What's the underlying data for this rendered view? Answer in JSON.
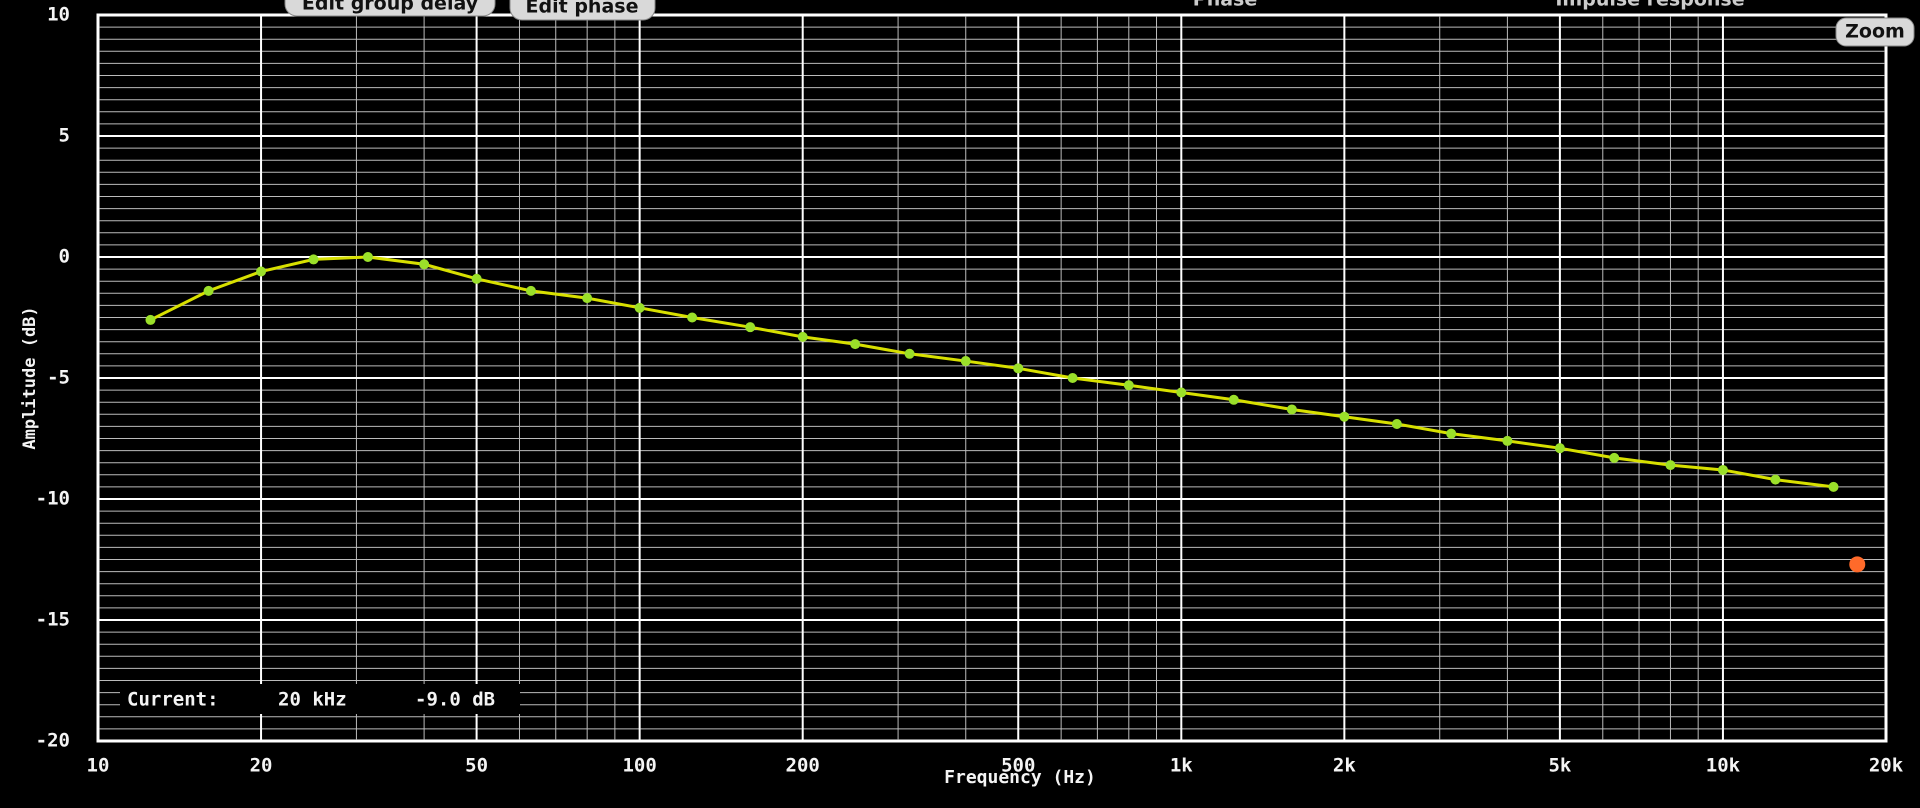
{
  "ui": {
    "buttons": [
      "Edit group delay",
      "Edit phase",
      "Zoom"
    ],
    "tabs": [
      "Phase",
      "Impulse response"
    ]
  },
  "chart_data": {
    "type": "line",
    "title": null,
    "xlabel": "Frequency (Hz)",
    "ylabel": "Amplitude (dB)",
    "x": [
      12.5,
      16,
      20,
      25,
      31.5,
      40,
      50,
      63,
      80,
      100,
      125,
      160,
      200,
      250,
      315,
      400,
      500,
      630,
      800,
      1000,
      1250,
      1600,
      2000,
      2500,
      3150,
      4000,
      5000,
      6300,
      8000,
      10000,
      12500,
      16000
    ],
    "values": [
      -2.6,
      -1.4,
      -0.6,
      -0.1,
      0.0,
      -0.3,
      -0.9,
      -1.4,
      -1.7,
      -2.1,
      -2.5,
      -2.9,
      -3.3,
      -3.6,
      -4.0,
      -4.3,
      -4.6,
      -5.0,
      -5.3,
      -5.6,
      -5.9,
      -6.3,
      -6.6,
      -6.9,
      -7.3,
      -7.6,
      -7.9,
      -8.3,
      -8.6,
      -8.8,
      -9.2,
      -9.5
    ],
    "color": "#d8e000",
    "point_color": "#9be02a",
    "marker": {
      "x": 17700,
      "value": -12.7,
      "color": "#ff6a2a"
    },
    "xlog": true,
    "xlim": [
      10,
      20000
    ],
    "xticks": [
      10,
      20,
      50,
      100,
      200,
      500,
      {
        "value": 1000,
        "label": "1k"
      },
      {
        "value": 2000,
        "label": "2k"
      },
      {
        "value": 5000,
        "label": "5k"
      },
      {
        "value": 10000,
        "label": "10k"
      },
      {
        "value": 20000,
        "label": "20k"
      }
    ],
    "ylim": [
      -20,
      10
    ],
    "yticks": [
      10,
      5,
      0,
      -5,
      -10,
      -15,
      -20
    ],
    "grid": true,
    "minor_grid": true,
    "readout": {
      "label": "Current:",
      "frequency": "20 kHz",
      "level": "-9.0 dB"
    }
  }
}
